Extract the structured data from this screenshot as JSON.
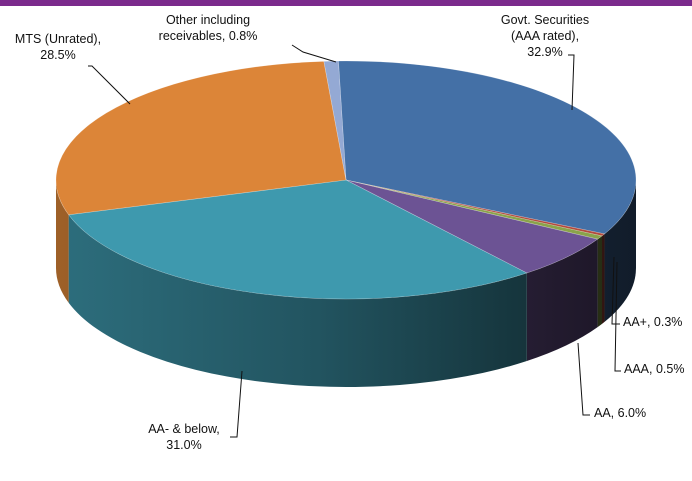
{
  "chart_data": {
    "type": "pie",
    "title": "",
    "slices": [
      {
        "name": "Govt. Securities (AAA rated)",
        "value": 32.9,
        "label_lines": [
          "Govt. Securities",
          "(AAA rated),",
          "32.9%"
        ],
        "color": "#4470a6"
      },
      {
        "name": "AA+",
        "value": 0.3,
        "label_lines": [
          "AA+, 0.3%"
        ],
        "color": "#b34a3d"
      },
      {
        "name": "AAA",
        "value": 0.5,
        "label_lines": [
          "AAA, 0.5%"
        ],
        "color": "#8aa34a"
      },
      {
        "name": "AA",
        "value": 6.0,
        "label_lines": [
          "AA, 6.0%"
        ],
        "color": "#6c5394"
      },
      {
        "name": "AA- & below",
        "value": 31.0,
        "label_lines": [
          "AA- & below,",
          "31.0%"
        ],
        "color": "#3e99ae"
      },
      {
        "name": "MTS (Unrated)",
        "value": 28.5,
        "label_lines": [
          "MTS (Unrated),",
          "28.5%"
        ],
        "color": "#dc8538"
      },
      {
        "name": "Other including receivables",
        "value": 0.8,
        "label_lines": [
          "Other including",
          "receivables, 0.8%"
        ],
        "color": "#94a9d4"
      }
    ]
  }
}
